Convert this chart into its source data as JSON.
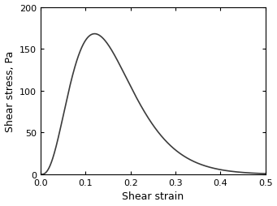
{
  "title": "",
  "xlabel": "Shear strain",
  "ylabel": "Shear stress, Pa",
  "xlim": [
    0.0,
    0.5
  ],
  "ylim": [
    0.0,
    200
  ],
  "xticks": [
    0.0,
    0.1,
    0.2,
    0.3,
    0.4,
    0.5
  ],
  "yticks": [
    0,
    50,
    100,
    150,
    200
  ],
  "n_power": 3,
  "b_decay": 25.0,
  "peak_stress": 168,
  "line_color": "#3c3c3c",
  "line_width": 1.2,
  "background_color": "#ffffff",
  "figsize": [
    3.41,
    2.55
  ],
  "dpi": 100
}
